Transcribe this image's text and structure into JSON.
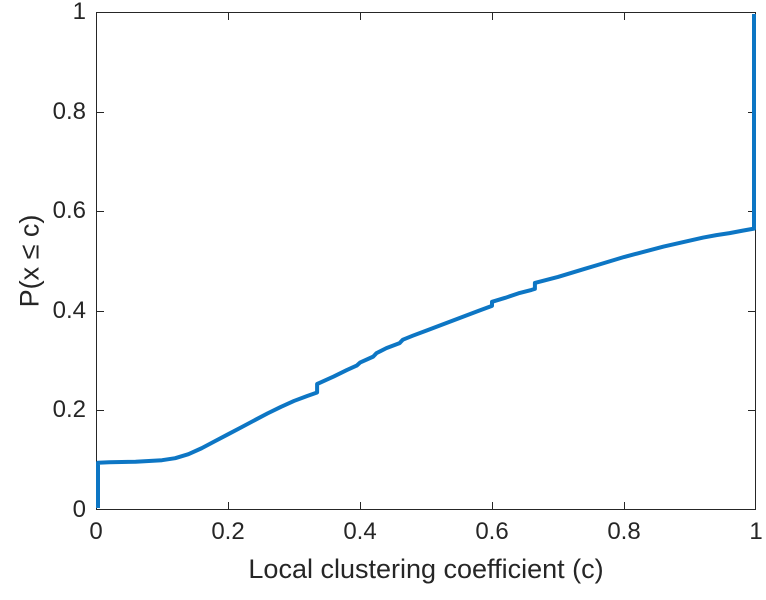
{
  "figure": {
    "background": "#ffffff",
    "axes_color": "#262626"
  },
  "chart_data": {
    "type": "line",
    "subtype": "empirical-cdf",
    "title": "",
    "xlabel": "Local clustering coefficient (c)",
    "ylabel": "P(x ≤ c)",
    "xlim": [
      0,
      1
    ],
    "ylim": [
      0,
      1
    ],
    "xticks": [
      0,
      0.2,
      0.4,
      0.6,
      0.8,
      1
    ],
    "yticks": [
      0,
      0.2,
      0.4,
      0.6,
      0.8,
      1
    ],
    "xtick_labels": [
      "0",
      "0.2",
      "0.4",
      "0.6",
      "0.8",
      "1"
    ],
    "ytick_labels": [
      "0",
      "0.2",
      "0.4",
      "0.6",
      "0.8",
      "1"
    ],
    "grid": false,
    "legend": null,
    "line_color": "#0d76c4",
    "line_width": 4,
    "tick_length": 8,
    "points": [
      [
        0.0,
        0.0
      ],
      [
        0.0,
        0.095
      ],
      [
        0.02,
        0.096
      ],
      [
        0.06,
        0.097
      ],
      [
        0.1,
        0.1
      ],
      [
        0.12,
        0.104
      ],
      [
        0.14,
        0.112
      ],
      [
        0.16,
        0.124
      ],
      [
        0.18,
        0.138
      ],
      [
        0.2,
        0.152
      ],
      [
        0.22,
        0.166
      ],
      [
        0.24,
        0.18
      ],
      [
        0.26,
        0.194
      ],
      [
        0.28,
        0.207
      ],
      [
        0.3,
        0.219
      ],
      [
        0.32,
        0.229
      ],
      [
        0.335,
        0.236
      ],
      [
        0.335,
        0.253
      ],
      [
        0.36,
        0.268
      ],
      [
        0.38,
        0.281
      ],
      [
        0.395,
        0.29
      ],
      [
        0.4,
        0.296
      ],
      [
        0.42,
        0.308
      ],
      [
        0.425,
        0.315
      ],
      [
        0.44,
        0.325
      ],
      [
        0.46,
        0.335
      ],
      [
        0.465,
        0.342
      ],
      [
        0.48,
        0.35
      ],
      [
        0.5,
        0.36
      ],
      [
        0.52,
        0.37
      ],
      [
        0.54,
        0.38
      ],
      [
        0.56,
        0.39
      ],
      [
        0.58,
        0.4
      ],
      [
        0.6,
        0.41
      ],
      [
        0.6,
        0.418
      ],
      [
        0.62,
        0.426
      ],
      [
        0.64,
        0.435
      ],
      [
        0.66,
        0.442
      ],
      [
        0.665,
        0.444
      ],
      [
        0.665,
        0.456
      ],
      [
        0.7,
        0.468
      ],
      [
        0.72,
        0.476
      ],
      [
        0.74,
        0.484
      ],
      [
        0.76,
        0.492
      ],
      [
        0.78,
        0.5
      ],
      [
        0.8,
        0.508
      ],
      [
        0.82,
        0.515
      ],
      [
        0.84,
        0.522
      ],
      [
        0.86,
        0.529
      ],
      [
        0.88,
        0.535
      ],
      [
        0.9,
        0.541
      ],
      [
        0.92,
        0.547
      ],
      [
        0.94,
        0.552
      ],
      [
        0.96,
        0.556
      ],
      [
        0.98,
        0.561
      ],
      [
        1.0,
        0.565
      ],
      [
        1.0,
        1.0
      ]
    ]
  }
}
